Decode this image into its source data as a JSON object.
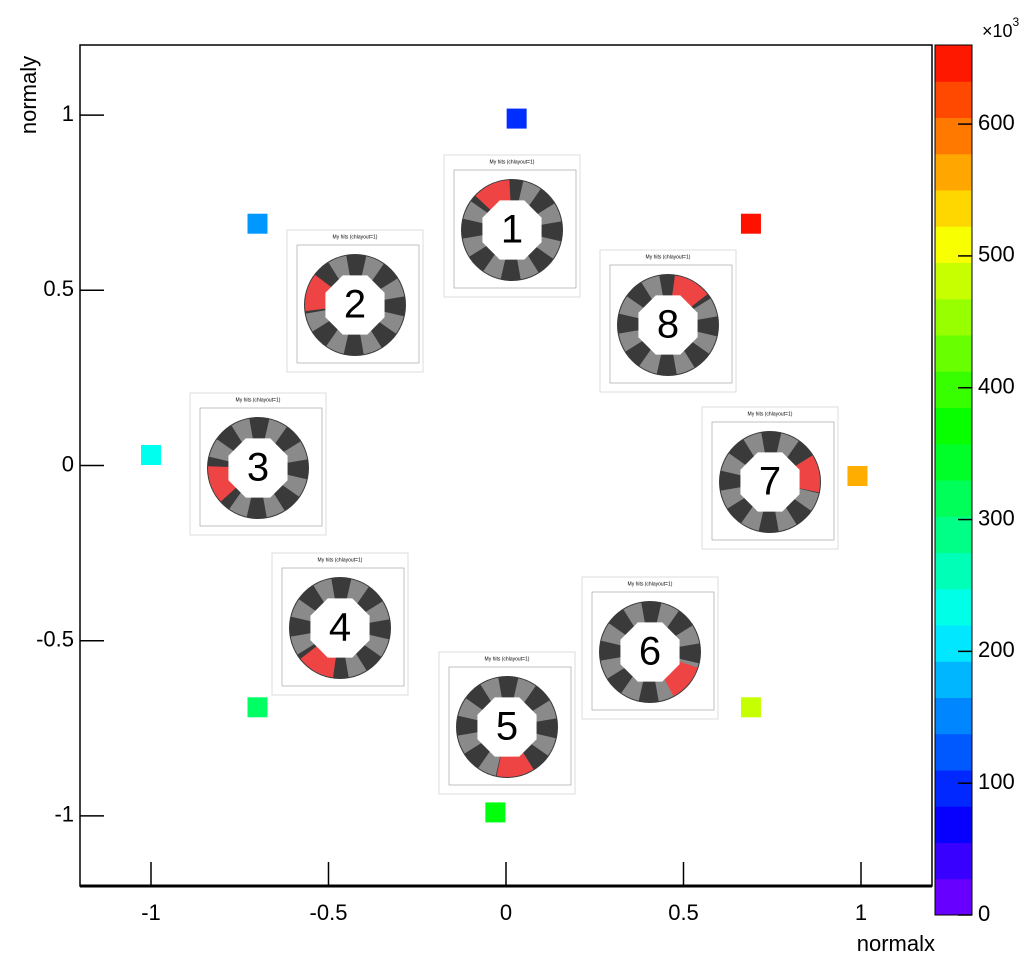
{
  "chart_data": {
    "type": "scatter",
    "x_label": "normalx",
    "y_label": "normaly",
    "x": [
      0.03,
      -0.7,
      -1.0,
      -0.7,
      -0.03,
      0.69,
      0.99,
      0.69
    ],
    "values": [
      0.99,
      0.69,
      0.03,
      -0.69,
      -0.99,
      -0.69,
      -0.03,
      0.69
    ],
    "z": [
      100,
      160,
      230,
      310,
      360,
      480,
      560,
      650
    ],
    "xlim": [
      -1.2,
      1.2
    ],
    "ylim": [
      -1.2,
      1.2
    ],
    "xticks": [
      -1,
      -0.5,
      0,
      0.5,
      1
    ],
    "yticks": [
      -1,
      -0.5,
      0,
      0.5,
      1
    ],
    "zlim": [
      0,
      660
    ],
    "zticks": [
      0,
      100,
      200,
      300,
      400,
      500,
      600
    ],
    "z_multiplier": {
      "base": "×10",
      "exponent": "3"
    },
    "inset_title": "My hits (chlayout=1)",
    "insets": [
      "1",
      "2",
      "3",
      "4",
      "5",
      "6",
      "7",
      "8"
    ]
  }
}
